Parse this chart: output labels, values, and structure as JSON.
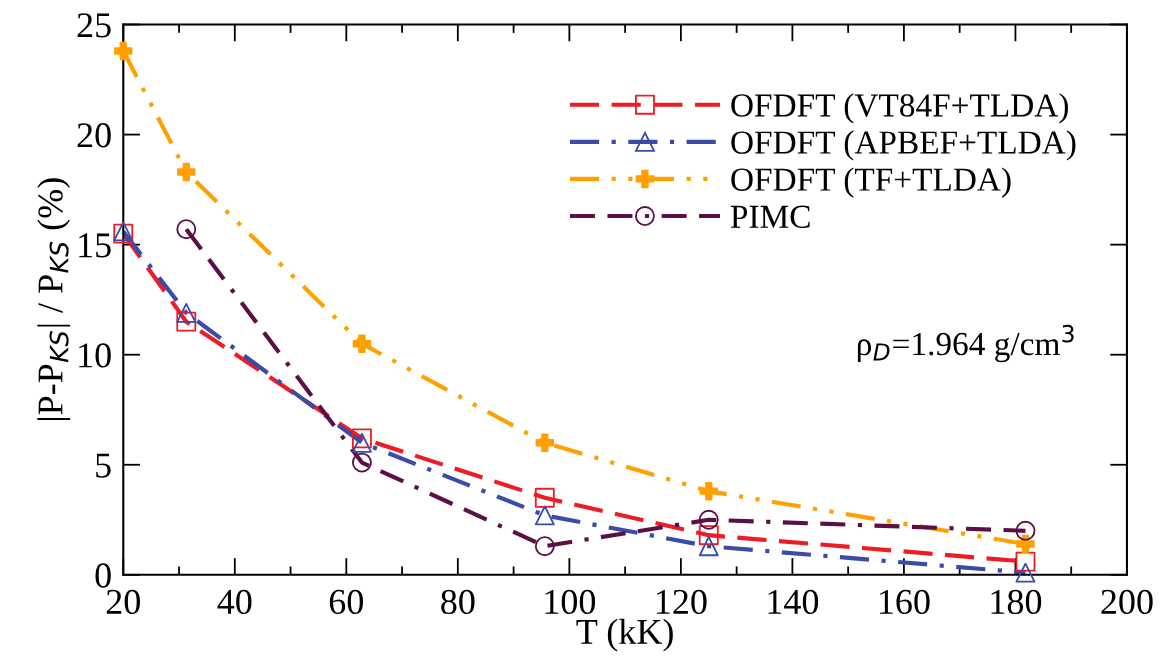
{
  "chart_data": {
    "type": "line",
    "xlabel": "T (kK)",
    "ylabel": "|P-P$_{KS}$| / P$_{KS}$ (%)",
    "x": [
      20,
      31.3,
      62.8,
      95.6,
      125,
      181.8
    ],
    "series": [
      {
        "name": "OFDFT (VT84F+TLDA)",
        "color": "#ee1c25",
        "marker": "square",
        "line_style": "dashed",
        "values": [
          15.5,
          11.5,
          6.2,
          3.5,
          1.8,
          0.6
        ]
      },
      {
        "name": "OFDFT (APBEF+TLDA)",
        "color": "#3a4ba8",
        "marker": "triangle",
        "line_style": "dashdot",
        "values": [
          15.6,
          11.9,
          6.0,
          2.7,
          1.3,
          0.1
        ]
      },
      {
        "name": "OFDFT (TF+TLDA)",
        "color": "#ffa000",
        "marker": "cross",
        "line_style": "dashdotdot",
        "values": [
          23.8,
          18.3,
          10.5,
          6.0,
          3.8,
          1.4
        ]
      },
      {
        "name": "PIMC",
        "x": [
          31.3,
          62.8,
          95.6,
          125,
          181.8
        ],
        "color": "#5c0f45",
        "marker": "circle",
        "line_style": "dashdashdot",
        "values": [
          15.7,
          5.1,
          1.3,
          2.5,
          2.0
        ]
      }
    ],
    "annotations": [
      "ρ$_{D}$=1.964 g/cm$^{3}$"
    ],
    "xlim": [
      20,
      200
    ],
    "xticks": [
      20,
      40,
      60,
      80,
      100,
      120,
      140,
      160,
      180,
      200
    ],
    "ylim": [
      0,
      25
    ],
    "yticks": [
      0,
      5,
      10,
      15,
      20,
      25
    ],
    "legend": "top right",
    "grid": false
  }
}
